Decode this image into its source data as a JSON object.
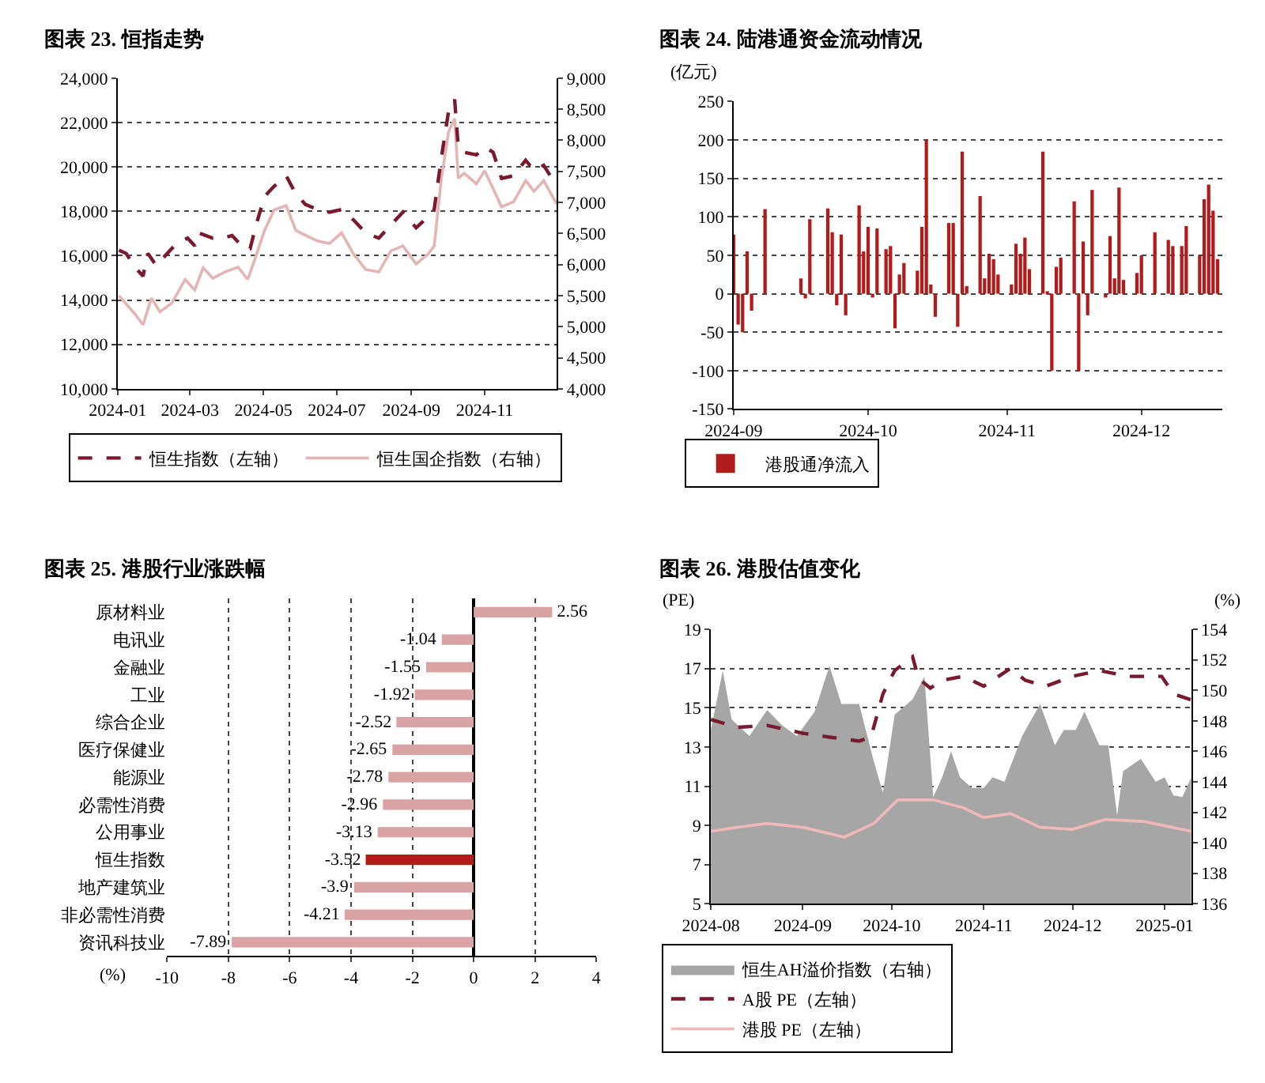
{
  "chart_data": [
    {
      "type": "line",
      "title": "图表 23. 恒指走势",
      "xlim": [
        "2024-01-01",
        "2024-12-31"
      ],
      "xticks": [
        "2024-01",
        "2024-03",
        "2024-05",
        "2024-07",
        "2024-09",
        "2024-11"
      ],
      "ylim": [
        10000,
        24000
      ],
      "yticks": [
        {
          "value": 10000,
          "label": "10,000"
        },
        {
          "value": 12000,
          "label": "12,000"
        },
        {
          "value": 14000,
          "label": "14,000"
        },
        {
          "value": 16000,
          "label": "16,000"
        },
        {
          "value": 18000,
          "label": "18,000"
        },
        {
          "value": 20000,
          "label": "20,000"
        },
        {
          "value": 22000,
          "label": "22,000"
        },
        {
          "value": 24000,
          "label": "24,000"
        }
      ],
      "y2lim": [
        4000,
        9000
      ],
      "y2ticks": [
        {
          "value": 4000,
          "label": "4,000"
        },
        {
          "value": 4500,
          "label": "4,500"
        },
        {
          "value": 5000,
          "label": "5,000"
        },
        {
          "value": 5500,
          "label": "5,500"
        },
        {
          "value": 6000,
          "label": "6,000"
        },
        {
          "value": 6500,
          "label": "6,500"
        },
        {
          "value": 7000,
          "label": "7,000"
        },
        {
          "value": 7500,
          "label": "7,500"
        },
        {
          "value": 8000,
          "label": "8,000"
        },
        {
          "value": 8500,
          "label": "8,500"
        },
        {
          "value": 9000,
          "label": "9,000"
        }
      ],
      "grid": "y",
      "legend": "bottom",
      "x": [
        "2024-01-02",
        "2024-01-08",
        "2024-01-15",
        "2024-01-22",
        "2024-01-26",
        "2024-02-02",
        "2024-02-09",
        "2024-02-19",
        "2024-02-28",
        "2024-03-05",
        "2024-03-08",
        "2024-03-20",
        "2024-03-28",
        "2024-04-05",
        "2024-04-15",
        "2024-04-20",
        "2024-04-25",
        "2024-05-02",
        "2024-05-10",
        "2024-05-20",
        "2024-05-28",
        "2024-06-05",
        "2024-06-15",
        "2024-06-25",
        "2024-07-05",
        "2024-07-15",
        "2024-07-25",
        "2024-08-05",
        "2024-08-15",
        "2024-08-25",
        "2024-09-05",
        "2024-09-12",
        "2024-09-20",
        "2024-09-26",
        "2024-10-02",
        "2024-10-07",
        "2024-10-10",
        "2024-10-15",
        "2024-10-25",
        "2024-11-01",
        "2024-11-08",
        "2024-11-15",
        "2024-11-25",
        "2024-12-05",
        "2024-12-12",
        "2024-12-20",
        "2024-12-31"
      ],
      "series": [
        {
          "name": "恒生指数（左轴）",
          "color": "#7a1a2e",
          "line_style": "dashed",
          "values": [
            16250,
            16100,
            15500,
            15080,
            16100,
            15550,
            15970,
            16560,
            16790,
            16440,
            17030,
            16790,
            16790,
            16910,
            16320,
            16320,
            17380,
            18670,
            19130,
            19600,
            18780,
            18310,
            18080,
            17960,
            18080,
            17610,
            17030,
            16790,
            17380,
            17960,
            17260,
            17610,
            18080,
            20420,
            22530,
            23040,
            20890,
            20660,
            20540,
            20890,
            20660,
            19480,
            19600,
            20300,
            19840,
            20070,
            19130
          ]
        },
        {
          "name": "恒生国企指数（右轴）",
          "color": "#e3b5b5",
          "line_style": "solid",
          "axis": "y2",
          "x": [
            "2024-01-02",
            "2024-01-15",
            "2024-01-22",
            "2024-01-29",
            "2024-02-05",
            "2024-02-15",
            "2024-02-26",
            "2024-03-05",
            "2024-03-12",
            "2024-03-20",
            "2024-03-30",
            "2024-04-10",
            "2024-04-18",
            "2024-04-24",
            "2024-05-02",
            "2024-05-10",
            "2024-05-20",
            "2024-05-28",
            "2024-06-05",
            "2024-06-15",
            "2024-06-25",
            "2024-07-05",
            "2024-07-15",
            "2024-07-25",
            "2024-08-05",
            "2024-08-15",
            "2024-08-25",
            "2024-09-05",
            "2024-09-15",
            "2024-09-20",
            "2024-09-26",
            "2024-10-02",
            "2024-10-07",
            "2024-10-10",
            "2024-10-15",
            "2024-10-25",
            "2024-11-01",
            "2024-11-08",
            "2024-11-15",
            "2024-11-25",
            "2024-12-05",
            "2024-12-12",
            "2024-12-20",
            "2024-12-31"
          ],
          "values": [
            5500,
            5210,
            5030,
            5460,
            5240,
            5380,
            5760,
            5590,
            5950,
            5780,
            5880,
            5960,
            5760,
            6090,
            6550,
            6880,
            6950,
            6550,
            6470,
            6380,
            6340,
            6510,
            6170,
            5920,
            5880,
            6220,
            6300,
            6010,
            6170,
            6300,
            7390,
            8140,
            8350,
            7390,
            7470,
            7300,
            7510,
            7220,
            6930,
            7010,
            7350,
            7180,
            7350,
            6970
          ]
        }
      ]
    },
    {
      "type": "bar",
      "title": "图表 24. 陆港通资金流动情况",
      "ylabel": "(亿元)",
      "xlim": [
        "2024-09-01",
        "2024-12-19"
      ],
      "xticks": [
        "2024-09",
        "2024-10",
        "2024-11",
        "2024-12"
      ],
      "ylim": [
        -150,
        250
      ],
      "yticks": [
        -150,
        -100,
        -50,
        0,
        50,
        100,
        150,
        200,
        250
      ],
      "grid": "y",
      "legend": "bottom",
      "x": [
        "2024-09-01",
        "2024-09-02",
        "2024-09-03",
        "2024-09-04",
        "2024-09-05",
        "2024-09-08",
        "2024-09-16",
        "2024-09-17",
        "2024-09-18",
        "2024-09-22",
        "2024-09-23",
        "2024-09-24",
        "2024-09-25",
        "2024-09-26",
        "2024-09-29",
        "2024-09-30",
        "2024-10-01",
        "2024-10-02",
        "2024-10-03",
        "2024-10-05",
        "2024-10-06",
        "2024-10-07",
        "2024-10-08",
        "2024-10-09",
        "2024-10-12",
        "2024-10-13",
        "2024-10-14",
        "2024-10-15",
        "2024-10-16",
        "2024-10-19",
        "2024-10-20",
        "2024-10-21",
        "2024-10-22",
        "2024-10-23",
        "2024-10-26",
        "2024-10-27",
        "2024-10-28",
        "2024-10-29",
        "2024-10-30",
        "2024-11-02",
        "2024-11-03",
        "2024-11-04",
        "2024-11-05",
        "2024-11-06",
        "2024-11-09",
        "2024-11-10",
        "2024-11-11",
        "2024-11-12",
        "2024-11-13",
        "2024-11-16",
        "2024-11-17",
        "2024-11-18",
        "2024-11-19",
        "2024-11-20",
        "2024-11-23",
        "2024-11-24",
        "2024-11-25",
        "2024-11-26",
        "2024-11-27",
        "2024-11-30",
        "2024-12-01",
        "2024-12-04",
        "2024-12-07",
        "2024-12-08",
        "2024-12-10",
        "2024-12-11",
        "2024-12-14",
        "2024-12-15",
        "2024-12-16",
        "2024-12-17",
        "2024-12-18"
      ],
      "series": [
        {
          "name": "港股通净流入",
          "color": "#b01c1c",
          "values": [
            77,
            -40,
            -50,
            55,
            -22,
            110,
            20,
            -6,
            97,
            111,
            80,
            -15,
            77,
            -28,
            115,
            55,
            87,
            -5,
            85,
            58,
            62,
            -45,
            25,
            40,
            30,
            87,
            200,
            12,
            -30,
            92,
            92,
            -43,
            185,
            10,
            127,
            20,
            52,
            45,
            25,
            12,
            65,
            52,
            73,
            32,
            185,
            3,
            -100,
            35,
            47,
            120,
            -100,
            68,
            -28,
            135,
            -5,
            75,
            20,
            138,
            18,
            27,
            50,
            80,
            70,
            62,
            62,
            88,
            50,
            123,
            142,
            108,
            45
          ]
        }
      ]
    },
    {
      "type": "bar",
      "title": "图表 25. 港股行业涨跌幅",
      "orientation": "horizontal",
      "xlabel": "(%)",
      "xlim": [
        -10,
        4
      ],
      "xticks": [
        -10,
        -8,
        -6,
        -4,
        -2,
        0,
        2,
        4
      ],
      "grid": "x",
      "data_labels": true,
      "categories": [
        "原材料业",
        "电讯业",
        "金融业",
        "工业",
        "综合企业",
        "医疗保健业",
        "能源业",
        "必需性消费",
        "公用事业",
        "恒生指数",
        "地产建筑业",
        "非必需性消费",
        "资讯科技业"
      ],
      "values": [
        2.56,
        -1.04,
        -1.55,
        -1.92,
        -2.52,
        -2.65,
        -2.78,
        -2.96,
        -3.13,
        -3.52,
        -3.9,
        -4.21,
        -7.89
      ],
      "colors": [
        "#d9a3a3",
        "#d9a3a3",
        "#d9a3a3",
        "#d9a3a3",
        "#d9a3a3",
        "#d9a3a3",
        "#d9a3a3",
        "#d9a3a3",
        "#d9a3a3",
        "#b01c1c",
        "#d9a3a3",
        "#d9a3a3",
        "#d9a3a3"
      ]
    },
    {
      "type": "line",
      "title": "图表 26. 港股估值变化",
      "ylabel": "(PE)",
      "y2label": "(%)",
      "xlim": [
        "2024-08-01",
        "2025-01-10"
      ],
      "xticks": [
        "2024-08",
        "2024-09",
        "2024-10",
        "2024-11",
        "2024-12",
        "2025-01"
      ],
      "ylim": [
        5,
        19
      ],
      "yticks": [
        5,
        7,
        9,
        11,
        13,
        15,
        17,
        19
      ],
      "y2lim": [
        136,
        154
      ],
      "y2ticks": [
        136,
        138,
        140,
        142,
        144,
        146,
        148,
        150,
        152,
        154
      ],
      "grid": "y",
      "legend": "bottom",
      "series": [
        {
          "name": "恒生AH溢价指数（右轴）",
          "type": "area",
          "axis": "y2",
          "color": "#a6a6a6",
          "x": [
            "2024-08-01",
            "2024-08-05",
            "2024-08-08",
            "2024-08-14",
            "2024-08-20",
            "2024-08-25",
            "2024-08-30",
            "2024-09-05",
            "2024-09-10",
            "2024-09-14",
            "2024-09-20",
            "2024-09-25",
            "2024-09-28",
            "2024-10-02",
            "2024-10-08",
            "2024-10-12",
            "2024-10-15",
            "2024-10-18",
            "2024-10-21",
            "2024-10-24",
            "2024-10-28",
            "2024-11-01",
            "2024-11-04",
            "2024-11-08",
            "2024-11-14",
            "2024-11-20",
            "2024-11-25",
            "2024-11-28",
            "2024-12-02",
            "2024-12-05",
            "2024-12-10",
            "2024-12-13",
            "2024-12-16",
            "2024-12-18",
            "2024-12-24",
            "2024-12-29",
            "2025-01-01",
            "2025-01-04",
            "2025-01-07",
            "2025-01-10"
          ],
          "values": [
            147.4,
            151.3,
            148.1,
            147.0,
            148.7,
            147.7,
            147.0,
            148.6,
            151.6,
            149.1,
            149.1,
            145.3,
            143.3,
            148.4,
            149.4,
            150.9,
            143.0,
            144.3,
            146.0,
            144.3,
            143.6,
            143.6,
            144.3,
            144.0,
            147.0,
            149.1,
            146.4,
            147.4,
            147.4,
            148.6,
            146.4,
            146.4,
            141.8,
            144.7,
            145.5,
            144.0,
            144.3,
            143.1,
            143.0,
            144.3
          ]
        },
        {
          "name": "A股 PE（左轴）",
          "type": "line",
          "line_style": "dashed",
          "color": "#7a1a2e",
          "x": [
            "2024-08-01",
            "2024-08-10",
            "2024-08-20",
            "2024-09-01",
            "2024-09-10",
            "2024-09-20",
            "2024-09-24",
            "2024-09-28",
            "2024-10-02",
            "2024-10-08",
            "2024-10-10",
            "2024-10-14",
            "2024-10-18",
            "2024-10-25",
            "2024-11-01",
            "2024-11-10",
            "2024-11-15",
            "2024-11-22",
            "2024-12-01",
            "2024-12-10",
            "2024-12-20",
            "2024-12-31",
            "2025-01-04",
            "2025-01-10"
          ],
          "values": [
            14.4,
            14.0,
            14.1,
            13.7,
            13.5,
            13.3,
            13.5,
            15.7,
            16.9,
            17.6,
            16.5,
            16.0,
            16.4,
            16.6,
            16.1,
            17.0,
            16.4,
            16.1,
            16.6,
            16.9,
            16.6,
            16.6,
            15.7,
            15.4
          ]
        },
        {
          "name": "港股 PE（左轴）",
          "type": "line",
          "line_style": "solid",
          "color": "#f0b8b8",
          "x": [
            "2024-08-01",
            "2024-08-10",
            "2024-08-20",
            "2024-09-01",
            "2024-09-15",
            "2024-09-25",
            "2024-10-03",
            "2024-10-15",
            "2024-10-25",
            "2024-11-01",
            "2024-11-10",
            "2024-11-20",
            "2024-12-01",
            "2024-12-12",
            "2024-12-25",
            "2025-01-10"
          ],
          "values": [
            8.7,
            8.9,
            9.1,
            8.9,
            8.4,
            9.1,
            10.3,
            10.3,
            9.9,
            9.4,
            9.6,
            8.9,
            8.8,
            9.3,
            9.2,
            8.7
          ]
        }
      ]
    }
  ]
}
